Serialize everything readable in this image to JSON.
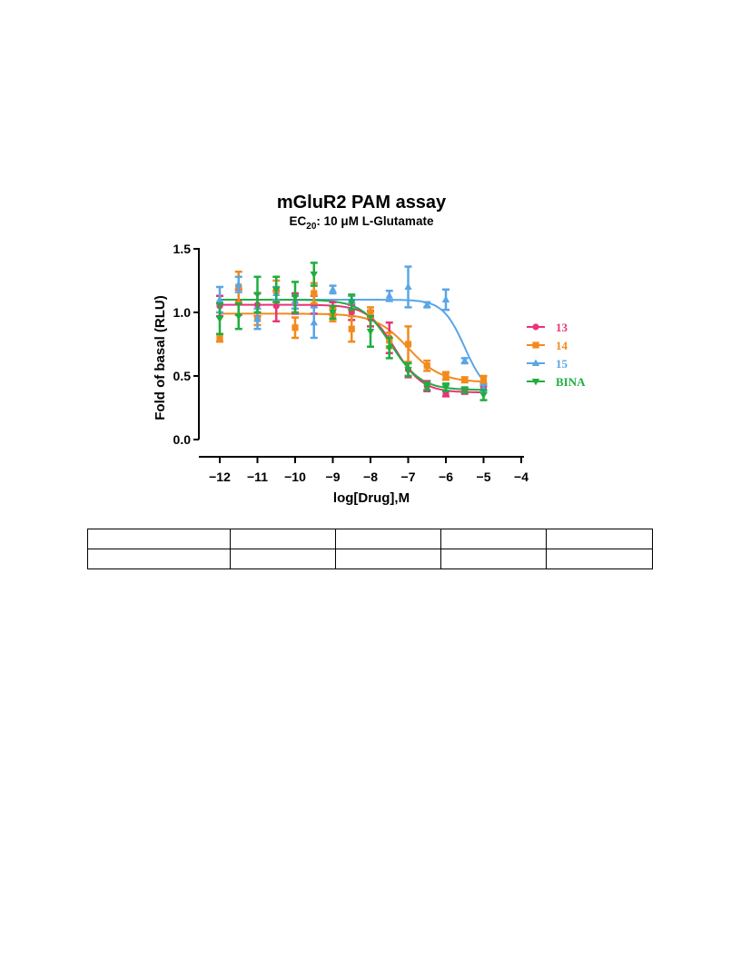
{
  "chart_data": {
    "type": "scatter",
    "title": "mGluR2 PAM assay",
    "subtitle": {
      "prefix": "EC",
      "sub": "20",
      "suffix": ": 10 μM L-Glutamate"
    },
    "xlabel": "log[Drug],M",
    "ylabel": "Fold of basal (RLU)",
    "xlim": [
      -12,
      -4
    ],
    "ylim": [
      0,
      1.5
    ],
    "xticks": [
      -12,
      -11,
      -10,
      -9,
      -8,
      -7,
      -6,
      -5,
      -4
    ],
    "yticks": [
      0.0,
      0.5,
      1.0,
      1.5
    ],
    "ytick_labels": [
      "0.0",
      "0.5",
      "1.0",
      "1.5"
    ],
    "legend_position": "right",
    "grid": false,
    "series": [
      {
        "name": "13",
        "color": "#e8347a",
        "marker": "circle",
        "x": [
          -12,
          -11.5,
          -11,
          -10.5,
          -10,
          -9.5,
          -9,
          -8.5,
          -8,
          -7.5,
          -7,
          -6.5,
          -6,
          -5.5,
          -5
        ],
        "y": [
          1.05,
          1.08,
          1.06,
          1.05,
          1.07,
          1.06,
          1.03,
          1.0,
          0.95,
          0.8,
          0.55,
          0.42,
          0.36,
          0.38,
          0.4
        ],
        "err": [
          0.08,
          0.1,
          0.09,
          0.12,
          0.08,
          0.07,
          0.05,
          0.06,
          0.06,
          0.12,
          0.06,
          0.04,
          0.02,
          0.02,
          0.02
        ],
        "curve": {
          "bottom": 0.37,
          "top": 1.06,
          "logEC50": -7.35,
          "hill": 1.2
        }
      },
      {
        "name": "14",
        "color": "#f28a1c",
        "marker": "square",
        "x": [
          -12,
          -11.5,
          -11,
          -10.5,
          -10,
          -9.5,
          -9,
          -8.5,
          -8,
          -7.5,
          -7,
          -6.5,
          -6,
          -5.5,
          -5
        ],
        "y": [
          0.8,
          1.2,
          0.95,
          1.17,
          0.88,
          1.15,
          0.98,
          0.87,
          1.0,
          0.78,
          0.75,
          0.58,
          0.5,
          0.47,
          0.47
        ],
        "err": [
          0.03,
          0.12,
          0.05,
          0.08,
          0.08,
          0.08,
          0.05,
          0.1,
          0.04,
          0.06,
          0.14,
          0.04,
          0.03,
          0.02,
          0.03
        ],
        "curve": {
          "bottom": 0.45,
          "top": 0.99,
          "logEC50": -7.0,
          "hill": 1.0
        }
      },
      {
        "name": "15",
        "color": "#5aa5e6",
        "marker": "triangle-up",
        "x": [
          -12,
          -11.5,
          -11,
          -10.5,
          -10,
          -9.5,
          -9,
          -8.5,
          -7.5,
          -7,
          -6.5,
          -6,
          -5.5,
          -5
        ],
        "y": [
          1.1,
          1.22,
          0.95,
          1.15,
          1.08,
          0.92,
          1.18,
          1.1,
          1.13,
          1.2,
          1.06,
          1.1,
          0.62,
          0.4
        ],
        "err": [
          0.1,
          0.06,
          0.08,
          0.05,
          0.05,
          0.12,
          0.03,
          0.03,
          0.04,
          0.16,
          0.02,
          0.08,
          0.02,
          0.03
        ],
        "curve": {
          "bottom": 0.35,
          "top": 1.1,
          "logEC50": -5.5,
          "hill": 1.5
        }
      },
      {
        "name": "BINA",
        "color": "#1fae3f",
        "marker": "triangle-down",
        "x": [
          -12,
          -11.5,
          -11,
          -10.5,
          -10,
          -9.5,
          -9,
          -8.5,
          -8,
          -7.5,
          -7,
          -6.5,
          -6,
          -5.5,
          -5
        ],
        "y": [
          0.95,
          0.97,
          1.14,
          1.18,
          1.12,
          1.3,
          1.0,
          1.08,
          0.85,
          0.72,
          0.55,
          0.42,
          0.41,
          0.39,
          0.35
        ],
        "err": [
          0.12,
          0.1,
          0.14,
          0.1,
          0.12,
          0.09,
          0.05,
          0.06,
          0.12,
          0.08,
          0.05,
          0.03,
          0.03,
          0.02,
          0.04
        ],
        "curve": {
          "bottom": 0.39,
          "top": 1.1,
          "logEC50": -7.45,
          "hill": 1.1
        }
      }
    ]
  }
}
